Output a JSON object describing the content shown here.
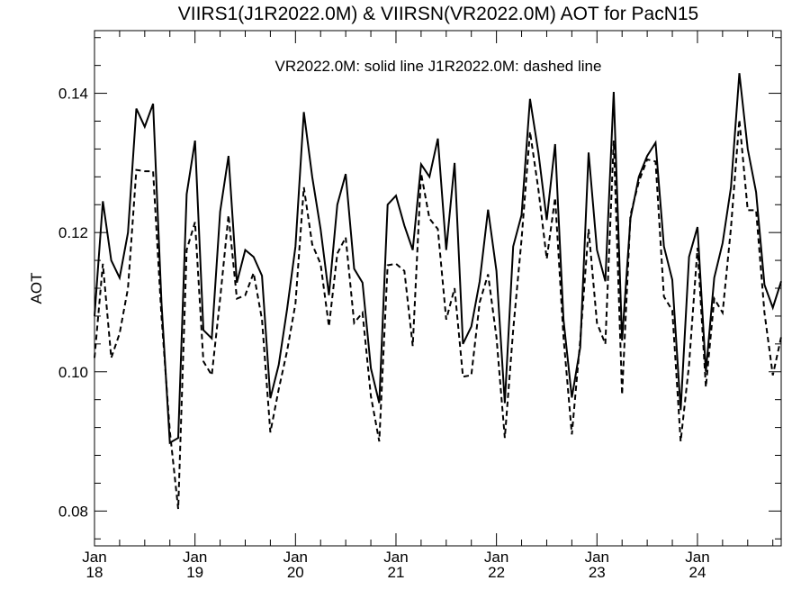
{
  "chart_data": {
    "type": "line",
    "title": "VIIRS1(J1R2022.0M) & VIIRSN(VR2022.0M)  AOT for PacN15",
    "annotation": "VR2022.0M: solid line   J1R2022.0M: dashed line",
    "xlabel": "",
    "ylabel": "AOT",
    "ylim": [
      0.075,
      0.149
    ],
    "yticks": [
      0.08,
      0.1,
      0.12,
      0.14
    ],
    "ytick_labels": [
      "0.08",
      "0.10",
      "0.12",
      "0.14"
    ],
    "xlim": [
      0,
      82
    ],
    "x_units": "months since Jan 2018",
    "xticks": [
      {
        "pos": 0,
        "line1": "Jan",
        "line2": "18"
      },
      {
        "pos": 12,
        "line1": "Jan",
        "line2": "19"
      },
      {
        "pos": 24,
        "line1": "Jan",
        "line2": "20"
      },
      {
        "pos": 36,
        "line1": "Jan",
        "line2": "21"
      },
      {
        "pos": 48,
        "line1": "Jan",
        "line2": "22"
      },
      {
        "pos": 60,
        "line1": "Jan",
        "line2": "23"
      },
      {
        "pos": 72,
        "line1": "Jan",
        "line2": "24"
      }
    ],
    "grid": false,
    "series": [
      {
        "name": "VR2022.0M",
        "style": "solid",
        "color": "#000000",
        "values": [
          0.108,
          0.1245,
          0.116,
          0.1135,
          0.12,
          0.1378,
          0.1352,
          0.1385,
          0.11,
          0.0898,
          0.0905,
          0.1255,
          0.1332,
          0.106,
          0.1048,
          0.123,
          0.131,
          0.1128,
          0.1175,
          0.1165,
          0.1138,
          0.0962,
          0.101,
          0.109,
          0.118,
          0.1373,
          0.128,
          0.1205,
          0.111,
          0.124,
          0.1284,
          0.1148,
          0.1128,
          0.1005,
          0.0955,
          0.124,
          0.1253,
          0.121,
          0.1175,
          0.1298,
          0.128,
          0.1335,
          0.1175,
          0.13,
          0.104,
          0.1065,
          0.113,
          0.1233,
          0.1145,
          0.0955,
          0.118,
          0.1225,
          0.1392,
          0.1315,
          0.1218,
          0.1327,
          0.1075,
          0.0963,
          0.1035,
          0.1315,
          0.1175,
          0.113,
          0.1402,
          0.1045,
          0.122,
          0.128,
          0.131,
          0.1329,
          0.118,
          0.1132,
          0.0945,
          0.1165,
          0.1208,
          0.1,
          0.1135,
          0.1185,
          0.1265,
          0.1429,
          0.132,
          0.1258,
          0.1125,
          0.1092,
          0.113
        ]
      },
      {
        "name": "J1R2022.0M",
        "style": "dashed",
        "color": "#000000",
        "values": [
          0.102,
          0.1155,
          0.102,
          0.1055,
          0.112,
          0.129,
          0.1288,
          0.1288,
          0.108,
          0.0915,
          0.0803,
          0.1175,
          0.1215,
          0.1015,
          0.0995,
          0.1105,
          0.1225,
          0.1105,
          0.111,
          0.1142,
          0.1075,
          0.0913,
          0.0975,
          0.103,
          0.1098,
          0.1265,
          0.1183,
          0.1155,
          0.1065,
          0.117,
          0.1193,
          0.107,
          0.1085,
          0.0965,
          0.09,
          0.1153,
          0.1155,
          0.1145,
          0.1037,
          0.1285,
          0.122,
          0.1205,
          0.1075,
          0.112,
          0.0993,
          0.0995,
          0.11,
          0.114,
          0.105,
          0.0905,
          0.106,
          0.119,
          0.1345,
          0.1262,
          0.1162,
          0.125,
          0.105,
          0.091,
          0.1045,
          0.1205,
          0.107,
          0.104,
          0.1332,
          0.0967,
          0.1225,
          0.1273,
          0.1305,
          0.1302,
          0.1108,
          0.1088,
          0.09,
          0.101,
          0.1178,
          0.0978,
          0.1105,
          0.1085,
          0.1207,
          0.1362,
          0.1232,
          0.1232,
          0.1085,
          0.0995,
          0.105
        ]
      }
    ]
  }
}
